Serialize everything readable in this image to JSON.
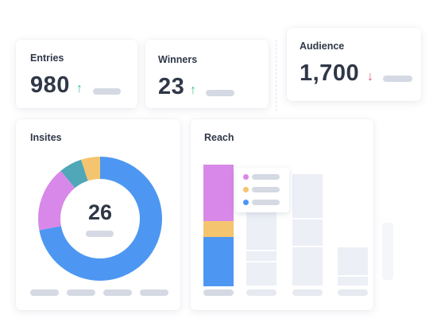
{
  "stats": {
    "entries": {
      "label": "Entries",
      "value": "980",
      "trend": "up"
    },
    "winners": {
      "label": "Winners",
      "value": "23",
      "trend": "up"
    },
    "audience": {
      "label": "Audience",
      "value": "1,700",
      "trend": "down"
    }
  },
  "insites": {
    "title": "Insites",
    "center_value": "26",
    "segments": [
      {
        "color": "#4d97f2",
        "fraction": 0.72
      },
      {
        "color": "#d888e8",
        "fraction": 0.17
      },
      {
        "color": "#4fa7b8",
        "fraction": 0.06
      },
      {
        "color": "#f4c56e",
        "fraction": 0.05
      }
    ]
  },
  "reach": {
    "title": "Reach",
    "first_bar_segments": [
      {
        "color": "#d888e8",
        "fraction": 0.465
      },
      {
        "color": "#f4c56e",
        "fraction": 0.13
      },
      {
        "color": "#4d97f2",
        "fraction": 0.405
      }
    ],
    "legend_colors": [
      "#d888e8",
      "#f4c56e",
      "#4d97f2"
    ]
  },
  "colors": {
    "up": "#3dc48b",
    "down": "#e0577b",
    "pill": "#d4d9e3",
    "ghost": "#eceff6"
  }
}
